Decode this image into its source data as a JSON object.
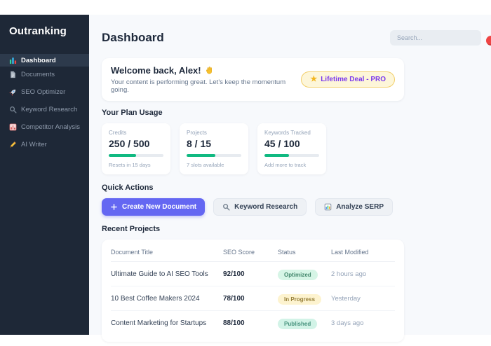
{
  "sidebar": {
    "logo": "Outranking",
    "items": [
      {
        "label": "Dashboard",
        "icon": "bar-chart-icon",
        "active": true
      },
      {
        "label": "Documents",
        "icon": "document-icon",
        "active": false
      },
      {
        "label": "SEO Optimizer",
        "icon": "rocket-icon",
        "active": false
      },
      {
        "label": "Keyword Research",
        "icon": "magnifier-icon",
        "active": false
      },
      {
        "label": "Competitor Analysis",
        "icon": "chart-grid-icon",
        "active": false
      },
      {
        "label": "AI Writer",
        "icon": "writing-hand-icon",
        "active": false
      }
    ]
  },
  "header": {
    "title": "Dashboard",
    "search_placeholder": "Search..."
  },
  "welcome": {
    "title": "Welcome back, Alex!",
    "subtitle": "Your content is performing great. Let's keep the momentum going.",
    "badge_label": "Lifetime Deal - PRO",
    "badge_icon": "★"
  },
  "plan_usage": {
    "heading": "Your Plan Usage",
    "cards": [
      {
        "label": "Credits",
        "value": "250 / 500",
        "percent": 50,
        "note": "Resets in 15 days"
      },
      {
        "label": "Projects",
        "value": "8 / 15",
        "percent": 53,
        "note": "7 slots available"
      },
      {
        "label": "Keywords Tracked",
        "value": "45 / 100",
        "percent": 45,
        "note": "Add more to track"
      }
    ]
  },
  "quick_actions": {
    "heading": "Quick Actions",
    "buttons": [
      {
        "label": "Create New Document",
        "icon": "plus-icon",
        "style": "primary"
      },
      {
        "label": "Keyword Research",
        "icon": "magnifier-icon",
        "style": "secondary"
      },
      {
        "label": "Analyze SERP",
        "icon": "serp-chart-icon",
        "style": "secondary"
      }
    ]
  },
  "recent_projects": {
    "heading": "Recent Projects",
    "columns": [
      "Document Title",
      "SEO Score",
      "Status",
      "Last Modified"
    ],
    "rows": [
      {
        "title": "Ultimate Guide to AI SEO Tools",
        "score": "92/100",
        "status": "Optimized",
        "status_type": "optimized",
        "modified": "2 hours ago"
      },
      {
        "title": "10 Best Coffee Makers 2024",
        "score": "78/100",
        "status": "In Progress",
        "status_type": "in-progress",
        "modified": "Yesterday"
      },
      {
        "title": "Content Marketing for Startups",
        "score": "88/100",
        "status": "Published",
        "status_type": "published",
        "modified": "3 days ago"
      }
    ]
  },
  "colors": {
    "sidebar_bg": "#1e2837",
    "sidebar_active_bg": "#2d3a4c",
    "main_bg": "#f7f9fc",
    "accent_purple": "#6467f2",
    "progress_green": "#10b981",
    "deal_badge_bg": "#fdf6d9",
    "deal_badge_border": "#f2cf6b",
    "deal_badge_text": "#7c3aed",
    "status_optimized_bg": "#d6f5e6",
    "status_in_progress_bg": "#fdf3cf",
    "status_published_bg": "#d2f3e7",
    "notification": "#ef4444"
  }
}
